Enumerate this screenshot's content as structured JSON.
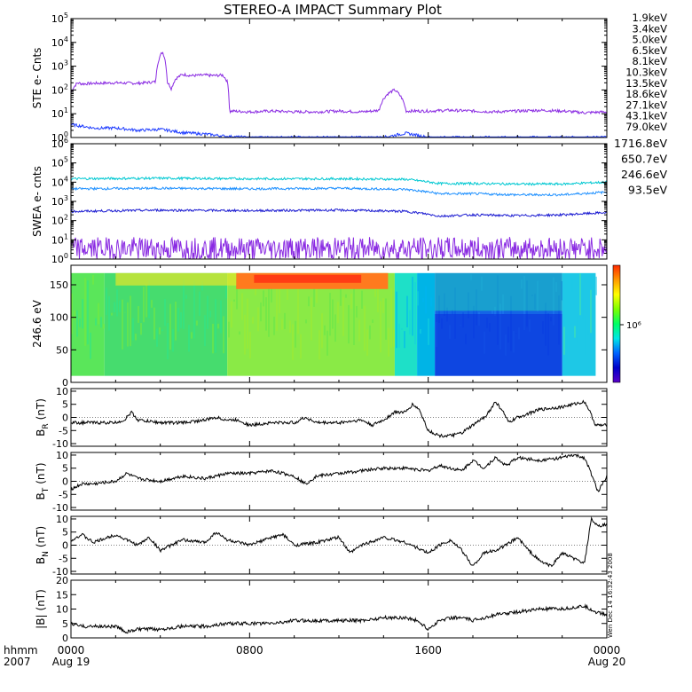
{
  "title": "STEREO-A IMPACT Summary Plot",
  "footer": {
    "row1_label": "hhmm",
    "row2_label": "2007",
    "ticks": [
      {
        "time": "0000",
        "date": "Aug 19",
        "hour": 0
      },
      {
        "time": "0800",
        "date": "",
        "hour": 8
      },
      {
        "time": "1600",
        "date": "",
        "hour": 16
      },
      {
        "time": "0000",
        "date": "Aug 20",
        "hour": 24
      }
    ],
    "timestamp": "Wen Dec 14 16:32:43 2008"
  },
  "ste_legend": [
    {
      "label": "1.9keV",
      "color": "#8a2be2"
    },
    {
      "label": "3.4keV",
      "color": "#4b0082"
    },
    {
      "label": "5.0keV",
      "color": "#1e3cff"
    },
    {
      "label": "6.5keV",
      "color": "#1e90ff"
    },
    {
      "label": "8.1keV",
      "color": "#00c8d2"
    },
    {
      "label": "10.3keV",
      "color": "#00c878"
    },
    {
      "label": "13.5keV",
      "color": "#32cd32"
    },
    {
      "label": "18.6keV",
      "color": "#9acd32"
    },
    {
      "label": "27.1keV",
      "color": "#e6d200"
    },
    {
      "label": "43.1keV",
      "color": "#ff8c00"
    },
    {
      "label": "79.0keV",
      "color": "#e60000"
    }
  ],
  "swea_legend": [
    {
      "label": "1716.8eV",
      "color": "#8a2be2"
    },
    {
      "label": "650.7eV",
      "color": "#1e1ed2"
    },
    {
      "label": "246.6eV",
      "color": "#1e90ff"
    },
    {
      "label": "93.5eV",
      "color": "#00c8d2"
    }
  ],
  "colorbar": {
    "label": "10⁶",
    "stops": [
      "#ff2a00",
      "#ff9a00",
      "#ffff00",
      "#7dff00",
      "#00ff64",
      "#00e6e6",
      "#0064ff",
      "#0000c8",
      "#5a00c8"
    ]
  },
  "chart_data": [
    {
      "type": "line",
      "panel": "ste",
      "ylabel": "STE e- Cnts",
      "yscale": "log",
      "ylim": [
        1,
        100000
      ],
      "yticks": [
        {
          "val": 1,
          "exp": "0"
        },
        {
          "val": 10,
          "exp": "1"
        },
        {
          "val": 100,
          "exp": "2"
        },
        {
          "val": 1000,
          "exp": "3"
        },
        {
          "val": 10000,
          "exp": "4"
        },
        {
          "val": 100000,
          "exp": "5"
        }
      ],
      "xlim": [
        0,
        24
      ],
      "series": [
        {
          "color": "#8a2be2",
          "x": [
            0,
            0.3,
            0.5,
            1,
            2,
            3,
            3.8,
            4.1,
            4.3,
            4.5,
            4.7,
            5,
            5.4,
            6,
            6.4,
            6.8,
            7.0,
            7.1,
            7.2,
            8,
            9,
            10,
            11,
            12,
            13,
            13.5,
            13.8,
            14.2,
            14.5,
            15,
            16,
            17,
            18,
            19,
            20,
            21,
            22,
            23,
            24
          ],
          "y": [
            80,
            200,
            180,
            190,
            200,
            190,
            220,
            4000,
            220,
            110,
            300,
            450,
            400,
            420,
            400,
            420,
            220,
            12,
            13,
            12,
            13,
            12,
            12,
            13,
            12,
            13,
            14,
            70,
            100,
            13,
            13,
            14,
            13,
            12,
            13,
            14,
            13,
            11,
            12
          ]
        },
        {
          "color": "#1e3cff",
          "x": [
            0,
            1,
            2,
            3,
            4,
            5,
            6,
            7,
            8,
            10,
            12,
            14,
            15,
            16,
            18,
            20,
            22,
            24
          ],
          "y": [
            3.5,
            2.5,
            2.5,
            2,
            2.2,
            1.6,
            1.4,
            1.1,
            1,
            1,
            1,
            1,
            1.5,
            1,
            1,
            1,
            1,
            1
          ]
        }
      ]
    },
    {
      "type": "line",
      "panel": "swea",
      "ylabel": "SWEA e- cnts",
      "yscale": "log",
      "ylim": [
        1,
        1000000
      ],
      "yticks": [
        {
          "val": 1,
          "exp": "0"
        },
        {
          "val": 10,
          "exp": "1"
        },
        {
          "val": 100,
          "exp": "2"
        },
        {
          "val": 1000,
          "exp": "3"
        },
        {
          "val": 10000,
          "exp": "4"
        },
        {
          "val": 100000,
          "exp": "5"
        },
        {
          "val": 1000000,
          "exp": "6"
        }
      ],
      "xlim": [
        0,
        24
      ],
      "series": [
        {
          "color": "#00c8d2",
          "x": [
            0,
            4,
            8,
            12,
            15,
            16.5,
            18,
            20,
            22,
            24
          ],
          "y": [
            15000,
            16000,
            15000,
            15000,
            14000,
            8500,
            8500,
            8000,
            8000,
            10000
          ]
        },
        {
          "color": "#1e90ff",
          "x": [
            0,
            4,
            8,
            12,
            15,
            16.5,
            18,
            20,
            22,
            24
          ],
          "y": [
            4500,
            4800,
            4500,
            4800,
            4200,
            2500,
            2500,
            2200,
            2200,
            3000
          ]
        },
        {
          "color": "#1e1ed2",
          "x": [
            0,
            4,
            8,
            12,
            15,
            16.5,
            18,
            20,
            22,
            24
          ],
          "y": [
            300,
            350,
            330,
            350,
            300,
            170,
            200,
            180,
            200,
            260
          ]
        },
        {
          "color": "#8a2be2",
          "x": [
            0,
            6,
            12,
            18,
            24
          ],
          "y": [
            3.5,
            3.5,
            3.5,
            3.5,
            3.5
          ]
        }
      ]
    },
    {
      "type": "heatmap",
      "panel": "pad",
      "ylabel": "246.6 eV",
      "ylim": [
        0,
        180
      ],
      "yticks": [
        0,
        50,
        100,
        150
      ],
      "xlim": [
        0,
        24
      ],
      "pitch_range": [
        10,
        168
      ],
      "note": "pitch-angle distribution; high-flux band 160-170 deg during hours 7-14; low-flux (blue) at low pitch angles during hours 16-22",
      "regions": [
        {
          "x": [
            0,
            1.5
          ],
          "color": "#5ae65a"
        },
        {
          "x": [
            1.5,
            7
          ],
          "color": "#46dc6e"
        },
        {
          "x": [
            7,
            14.5
          ],
          "color": "#8aea46"
        },
        {
          "x": [
            14.5,
            15.5
          ],
          "color": "#1ee0c8"
        },
        {
          "x": [
            15.5,
            16.3
          ],
          "color": "#00b4e6"
        },
        {
          "x": [
            16.3,
            22
          ],
          "color": "#1464e6"
        },
        {
          "x": [
            22,
            23.5
          ],
          "color": "#1ec8e6"
        }
      ]
    },
    {
      "type": "line",
      "panel": "br",
      "ylabel": "B_R (nT)",
      "ylabel_main": "B",
      "ylabel_sub": "R",
      "ylabel_unit": "(nT)",
      "ylim": [
        -11,
        11
      ],
      "yticks": [
        -10,
        -5,
        0,
        5,
        10
      ],
      "xlim": [
        0,
        24
      ],
      "series": [
        {
          "color": "#000000",
          "x": [
            0,
            1,
            2,
            2.4,
            2.7,
            3,
            4,
            5,
            6,
            6.5,
            7,
            7.5,
            8,
            9,
            10,
            10.5,
            11,
            12,
            13,
            13.5,
            14,
            14.5,
            15,
            15.3,
            15.6,
            16,
            16.5,
            17,
            17.5,
            18,
            18.5,
            18.8,
            19,
            19.3,
            19.6,
            20,
            21,
            22,
            22.5,
            23,
            23.2,
            23.5,
            24
          ],
          "y": [
            -2,
            -2,
            -2,
            -1,
            2,
            -1,
            -2,
            -2,
            -1,
            0,
            -1,
            -1,
            -3,
            -2,
            -2,
            0,
            -2,
            -2,
            -1,
            -3,
            -1,
            2,
            2,
            5,
            3,
            -5,
            -7,
            -7,
            -6,
            -3,
            0,
            3,
            6,
            3,
            -2,
            0,
            3,
            4,
            5,
            6,
            3,
            -3,
            -3
          ]
        }
      ]
    },
    {
      "type": "line",
      "panel": "bt",
      "ylabel": "B_T (nT)",
      "ylabel_main": "B",
      "ylabel_sub": "T",
      "ylabel_unit": "(nT)",
      "ylim": [
        -11,
        11
      ],
      "yticks": [
        -10,
        -5,
        0,
        5,
        10
      ],
      "xlim": [
        0,
        24
      ],
      "series": [
        {
          "color": "#000000",
          "x": [
            0,
            0.5,
            1,
            2,
            2.5,
            3,
            4,
            5,
            6,
            7,
            8,
            9,
            10,
            10.5,
            11,
            12,
            13,
            14,
            15,
            16,
            16.5,
            17,
            17.5,
            18,
            18.5,
            19,
            19.5,
            20,
            21,
            22,
            22.5,
            23,
            23.3,
            23.6,
            24
          ],
          "y": [
            -3,
            -1,
            -1,
            0,
            3,
            1,
            0,
            2,
            1,
            3,
            3,
            4,
            2,
            -1,
            2,
            3,
            4,
            5,
            5,
            4,
            6,
            5,
            4,
            8,
            5,
            9,
            6,
            9,
            8,
            9,
            10,
            9,
            3,
            -4,
            2
          ]
        }
      ]
    },
    {
      "type": "line",
      "panel": "bn",
      "ylabel": "B_N (nT)",
      "ylabel_main": "B",
      "ylabel_sub": "N",
      "ylabel_unit": "(nT)",
      "ylim": [
        -11,
        11
      ],
      "yticks": [
        -10,
        -5,
        0,
        5,
        10
      ],
      "xlim": [
        0,
        24
      ],
      "series": [
        {
          "color": "#000000",
          "x": [
            0,
            0.5,
            1,
            2,
            3,
            3.5,
            4,
            5,
            6,
            6.5,
            7,
            8,
            9,
            9.5,
            10,
            11,
            12,
            12.5,
            13,
            14,
            15,
            16,
            16.5,
            17,
            17.5,
            18,
            18.5,
            19,
            19.5,
            20,
            20.5,
            21,
            21.5,
            22,
            22.5,
            23,
            23.3,
            23.6,
            24
          ],
          "y": [
            2,
            4,
            1,
            4,
            0,
            3,
            -2,
            2,
            1,
            5,
            2,
            0,
            3,
            4,
            0,
            1,
            3,
            -3,
            0,
            3,
            1,
            -3,
            0,
            2,
            -2,
            -8,
            -3,
            -2,
            0,
            3,
            -2,
            -6,
            -8,
            -3,
            -5,
            -7,
            10,
            7,
            8
          ]
        }
      ]
    },
    {
      "type": "line",
      "panel": "bmag",
      "ylabel": "|B| (nT)",
      "ylabel_main": "|B|",
      "ylabel_sub": "",
      "ylabel_unit": "(nT)",
      "ylim": [
        0,
        20
      ],
      "yticks": [
        0,
        5,
        10,
        15,
        20
      ],
      "xlim": [
        0,
        24
      ],
      "series": [
        {
          "color": "#000000",
          "x": [
            0,
            0.5,
            1,
            2,
            2.5,
            3,
            4,
            5,
            6,
            7,
            8,
            9,
            10,
            11,
            12,
            13,
            14,
            15,
            15.5,
            16,
            16.5,
            17,
            17.5,
            18,
            19,
            20,
            21,
            22,
            23,
            23.5,
            24
          ],
          "y": [
            5,
            4,
            4,
            4,
            2,
            3,
            3,
            4,
            4,
            5,
            5,
            5,
            6,
            6,
            6,
            6,
            7,
            7,
            6,
            3,
            6,
            7,
            7,
            6,
            8,
            9,
            10,
            10,
            11,
            9,
            8
          ]
        }
      ]
    }
  ]
}
